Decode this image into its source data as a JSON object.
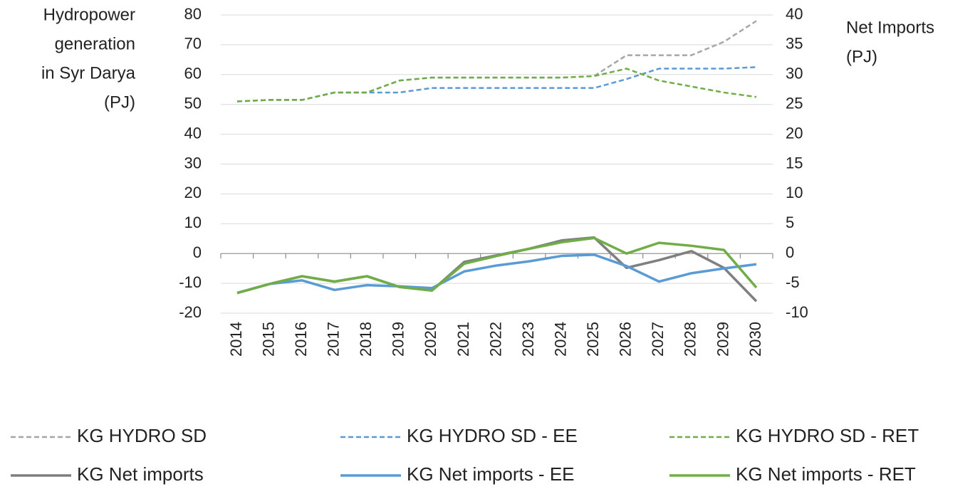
{
  "chart_data": {
    "type": "line",
    "ylabel": [
      "Hydropower",
      "generation",
      "in Syr Darya",
      "(PJ)"
    ],
    "y2label": [
      "Net Imports",
      "(PJ)"
    ],
    "categories": [
      "2014",
      "2015",
      "2016",
      "2017",
      "2018",
      "2019",
      "2020",
      "2021",
      "2022",
      "2023",
      "2024",
      "2025",
      "2026",
      "2027",
      "2028",
      "2029",
      "2030"
    ],
    "ylim": [
      -20,
      80
    ],
    "yticks": [
      -20,
      -10,
      0,
      10,
      20,
      30,
      40,
      50,
      60,
      70,
      80
    ],
    "y2lim": [
      -10,
      40
    ],
    "y2ticks": [
      -10,
      -5,
      0,
      5,
      10,
      15,
      20,
      25,
      30,
      35,
      40
    ],
    "grid": true,
    "series": [
      {
        "name": "KG HYDRO SD",
        "color": "#a6a6a6",
        "dashed": true,
        "values": [
          51,
          51.5,
          51.5,
          54,
          54,
          58,
          59,
          59,
          59,
          59,
          59,
          59.5,
          66.5,
          66.5,
          66.5,
          71,
          78
        ]
      },
      {
        "name": "KG HYDRO SD - EE",
        "color": "#5b9bd5",
        "dashed": true,
        "values": [
          51,
          51.5,
          51.5,
          54,
          54,
          54,
          55.5,
          55.5,
          55.5,
          55.5,
          55.5,
          55.5,
          58.5,
          62,
          62,
          62,
          62.5
        ]
      },
      {
        "name": "KG HYDRO SD - RET",
        "color": "#70ad47",
        "dashed": true,
        "values": [
          51,
          51.5,
          51.5,
          54,
          54,
          58,
          59,
          59,
          59,
          59,
          59,
          59.5,
          62,
          58,
          56,
          54,
          52.5
        ]
      },
      {
        "name": "KG Net imports",
        "color": "#7f7f7f",
        "dashed": false,
        "axis": "y2",
        "values": [
          -6.6,
          -5.1,
          -3.8,
          -4.7,
          -3.8,
          -5.6,
          -6.2,
          -1.4,
          -0.3,
          0.8,
          2.2,
          2.7,
          -2.4,
          -1.1,
          0.4,
          -2.4,
          -8.0
        ]
      },
      {
        "name": "KG Net imports - EE",
        "color": "#5b9bd5",
        "dashed": false,
        "axis": "y2",
        "values": [
          -6.6,
          -5.1,
          -4.5,
          -6.1,
          -5.3,
          -5.5,
          -5.8,
          -3.0,
          -2.0,
          -1.3,
          -0.4,
          -0.2,
          -2.1,
          -4.7,
          -3.3,
          -2.5,
          -1.8
        ]
      },
      {
        "name": "KG Net imports - RET",
        "color": "#70ad47",
        "dashed": false,
        "axis": "y2",
        "values": [
          -6.6,
          -5.1,
          -3.8,
          -4.7,
          -3.8,
          -5.6,
          -6.2,
          -1.7,
          -0.4,
          0.8,
          1.9,
          2.6,
          0,
          1.8,
          1.3,
          0.6,
          -5.7
        ]
      }
    ]
  }
}
